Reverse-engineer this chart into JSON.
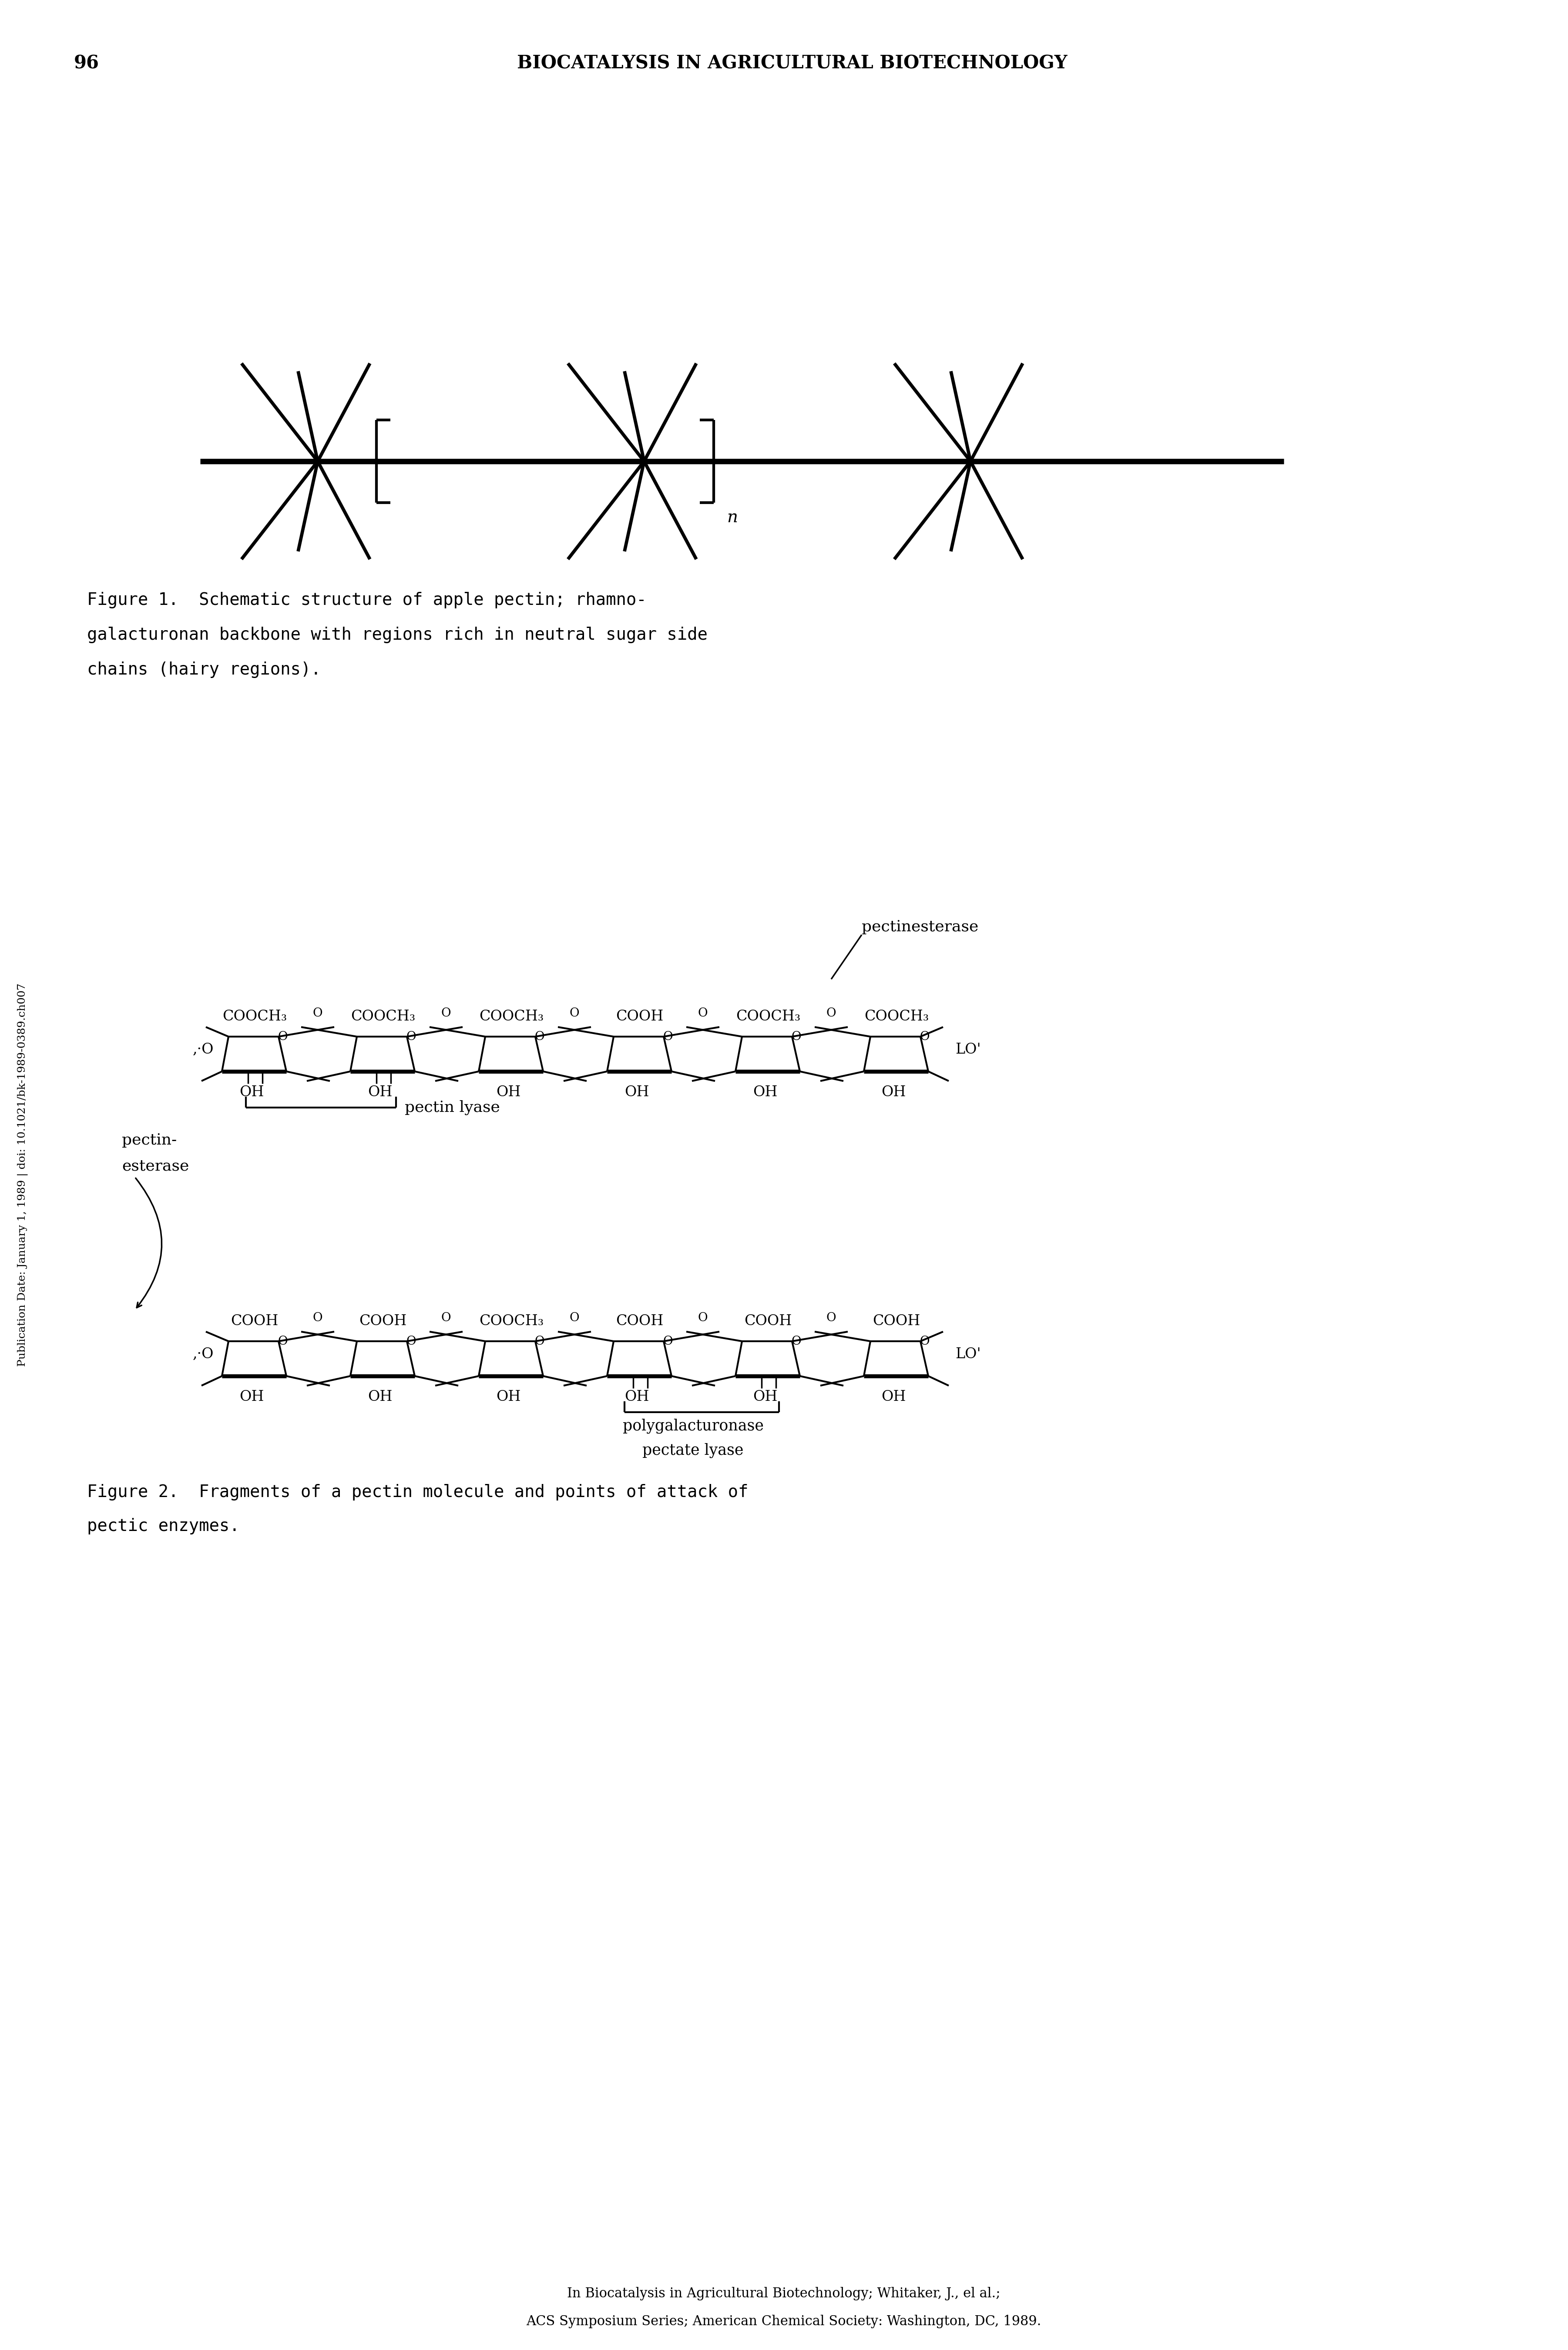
{
  "bg_color": "#ffffff",
  "page_number": "96",
  "header_title": "BIOCATALYSIS IN AGRICULTURAL BIOTECHNOLOGY",
  "figure1_caption_lines": [
    "Figure 1.  Schematic structure of apple pectin; rhamno-",
    "galacturonan backbone with regions rich in neutral sugar side",
    "chains (hairy regions)."
  ],
  "figure2_caption_lines": [
    "Figure 2.  Fragments of a pectin molecule and points of attack of",
    "pectic enzymes."
  ],
  "footer_line1": "In Biocatalysis in Agricultural Biotechnology; Whitaker, J., el al.;",
  "footer_line2": "ACS Symposium Series; American Chemical Society: Washington, DC, 1989.",
  "sidebar_text": "Publication Date: January 1, 1989 | doi: 10.1021/bk-1989-0389.ch007",
  "upper_chain_labels": [
    "COOCH₃",
    "COOCH₃",
    "COOCH₃",
    "COOH",
    "COOCH₃",
    "COOCH₃"
  ],
  "lower_chain_labels": [
    "COOH",
    "COOH",
    "COOCH₃",
    "COOH",
    "COOH",
    "COOH"
  ],
  "upper_oh_tick": [
    true,
    true,
    false,
    false,
    false,
    false
  ],
  "lower_oh_tick": [
    false,
    false,
    false,
    true,
    true,
    false
  ]
}
